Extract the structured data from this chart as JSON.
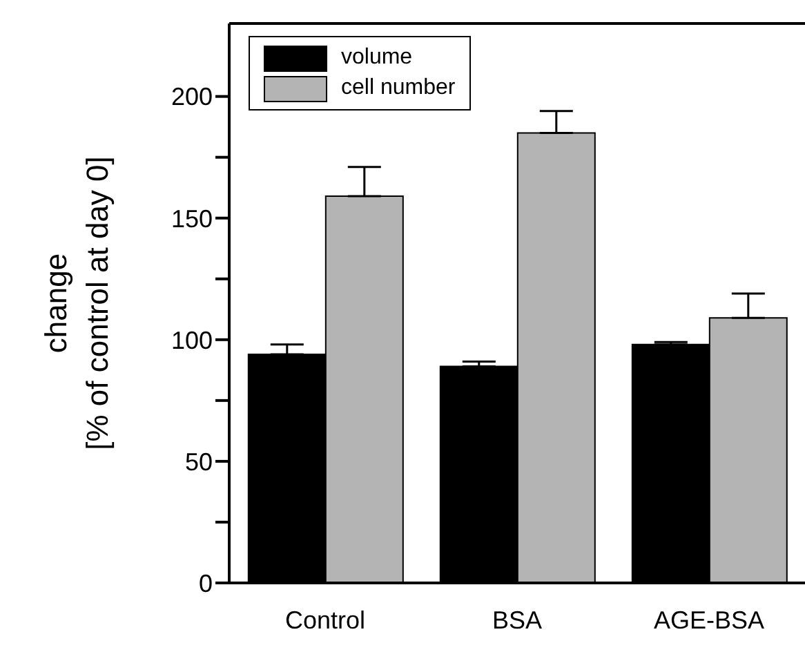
{
  "chart_data": {
    "type": "bar",
    "ylabel": "change\n[% of control at day 0]",
    "categories": [
      "Control",
      "BSA",
      "AGE-BSA"
    ],
    "series": [
      {
        "name": "volume",
        "color": "#000000",
        "values": [
          94,
          89,
          98
        ],
        "errors": [
          [
            94,
            98
          ],
          [
            89,
            91
          ],
          [
            98,
            99
          ]
        ]
      },
      {
        "name": "cell number",
        "color": "#b4b4b4",
        "values": [
          159,
          185,
          109
        ],
        "errors": [
          [
            159,
            171
          ],
          [
            185,
            194
          ],
          [
            109,
            119
          ]
        ]
      }
    ],
    "ylim": [
      0,
      230
    ],
    "yticks": [
      0,
      {
        "value": 25,
        "label": null
      },
      50,
      {
        "value": 75,
        "label": null
      },
      100,
      {
        "value": 125,
        "label": null
      },
      150,
      {
        "value": 175,
        "label": null
      },
      200
    ],
    "grid": false,
    "legend": "top left"
  }
}
